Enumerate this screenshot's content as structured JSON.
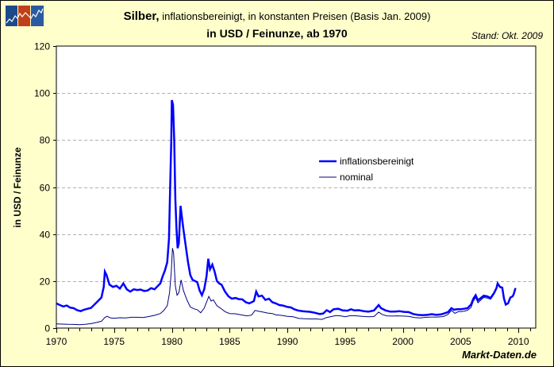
{
  "header": {
    "title_bold": "Silber,",
    "title_rest": " inflationsbereinigt, in konstanten Preisen (Basis Jan. 2009)",
    "subtitle": "in USD / Feinunze, ab 1970",
    "stand": "Stand: Okt. 2009"
  },
  "footer": {
    "credit": "Markt-Daten.de"
  },
  "logo": {
    "icon": "chart-logo-icon",
    "colors": [
      "#1a4a8a",
      "#c0401a",
      "#2a5aa0"
    ]
  },
  "colors": {
    "background": "#ffffcc",
    "plot_background": "#ffffff",
    "inflationsbereinigt": "#0000ff",
    "nominal": "#000080",
    "grid": "#b0b0b0"
  },
  "chart_data": {
    "type": "line",
    "title": "Silber, inflationsbereinigt, in konstanten Preisen (Basis Jan. 2009) – in USD / Feinunze, ab 1970",
    "xlabel": "",
    "ylabel": "in USD / Feinunze",
    "xlim": [
      1970,
      2011.5
    ],
    "ylim": [
      0,
      120
    ],
    "xticks": [
      1970,
      1975,
      1980,
      1985,
      1990,
      1995,
      2000,
      2005,
      2010
    ],
    "yticks": [
      0,
      20,
      40,
      60,
      80,
      100,
      120
    ],
    "grid": "horizontal dashed",
    "legend_position": "upper right center",
    "series": [
      {
        "name": "inflationsbereinigt",
        "color": "#0000ff",
        "width": 2.5,
        "points": [
          [
            1970.0,
            10.5
          ],
          [
            1970.3,
            9.8
          ],
          [
            1970.6,
            9.2
          ],
          [
            1970.9,
            9.6
          ],
          [
            1971.2,
            8.7
          ],
          [
            1971.5,
            8.5
          ],
          [
            1971.8,
            7.6
          ],
          [
            1972.1,
            7.2
          ],
          [
            1972.4,
            7.8
          ],
          [
            1972.7,
            8.2
          ],
          [
            1973.0,
            8.6
          ],
          [
            1973.3,
            10.0
          ],
          [
            1973.6,
            11.5
          ],
          [
            1973.9,
            13.0
          ],
          [
            1974.1,
            17.5
          ],
          [
            1974.2,
            24.0
          ],
          [
            1974.35,
            22.5
          ],
          [
            1974.6,
            18.5
          ],
          [
            1974.9,
            17.5
          ],
          [
            1975.2,
            18.0
          ],
          [
            1975.5,
            16.8
          ],
          [
            1975.8,
            19.0
          ],
          [
            1976.1,
            16.5
          ],
          [
            1976.4,
            15.5
          ],
          [
            1976.7,
            16.5
          ],
          [
            1977.0,
            16.2
          ],
          [
            1977.3,
            16.4
          ],
          [
            1977.6,
            15.8
          ],
          [
            1977.9,
            16.0
          ],
          [
            1978.2,
            17.0
          ],
          [
            1978.5,
            16.5
          ],
          [
            1978.8,
            18.0
          ],
          [
            1979.0,
            19.0
          ],
          [
            1979.2,
            22.0
          ],
          [
            1979.4,
            24.5
          ],
          [
            1979.6,
            28.0
          ],
          [
            1979.75,
            38.0
          ],
          [
            1979.85,
            60.0
          ],
          [
            1979.95,
            80.0
          ],
          [
            1980.0,
            97.0
          ],
          [
            1980.1,
            95.0
          ],
          [
            1980.2,
            80.0
          ],
          [
            1980.3,
            55.0
          ],
          [
            1980.4,
            42.0
          ],
          [
            1980.5,
            34.0
          ],
          [
            1980.6,
            36.0
          ],
          [
            1980.75,
            52.0
          ],
          [
            1980.85,
            48.0
          ],
          [
            1981.0,
            42.0
          ],
          [
            1981.2,
            35.0
          ],
          [
            1981.4,
            28.0
          ],
          [
            1981.6,
            22.5
          ],
          [
            1981.8,
            20.5
          ],
          [
            1982.0,
            20.0
          ],
          [
            1982.2,
            19.5
          ],
          [
            1982.4,
            16.0
          ],
          [
            1982.6,
            14.0
          ],
          [
            1982.8,
            16.5
          ],
          [
            1983.0,
            22.0
          ],
          [
            1983.15,
            29.5
          ],
          [
            1983.3,
            25.0
          ],
          [
            1983.5,
            27.0
          ],
          [
            1983.7,
            24.0
          ],
          [
            1983.9,
            20.0
          ],
          [
            1984.1,
            19.0
          ],
          [
            1984.3,
            18.5
          ],
          [
            1984.6,
            15.5
          ],
          [
            1984.9,
            13.5
          ],
          [
            1985.2,
            12.5
          ],
          [
            1985.5,
            12.8
          ],
          [
            1985.8,
            12.3
          ],
          [
            1986.1,
            12.2
          ],
          [
            1986.4,
            11.0
          ],
          [
            1986.7,
            10.5
          ],
          [
            1986.9,
            11.0
          ],
          [
            1987.1,
            11.5
          ],
          [
            1987.3,
            15.5
          ],
          [
            1987.5,
            13.5
          ],
          [
            1987.8,
            13.8
          ],
          [
            1988.1,
            12.0
          ],
          [
            1988.4,
            12.5
          ],
          [
            1988.7,
            11.0
          ],
          [
            1989.0,
            10.5
          ],
          [
            1989.3,
            9.8
          ],
          [
            1989.6,
            9.6
          ],
          [
            1990.0,
            9.0
          ],
          [
            1990.3,
            8.8
          ],
          [
            1990.6,
            8.0
          ],
          [
            1990.9,
            7.5
          ],
          [
            1991.3,
            7.2
          ],
          [
            1991.7,
            7.0
          ],
          [
            1992.0,
            6.9
          ],
          [
            1992.4,
            6.5
          ],
          [
            1992.8,
            6.0
          ],
          [
            1993.1,
            6.2
          ],
          [
            1993.4,
            7.6
          ],
          [
            1993.7,
            6.8
          ],
          [
            1994.0,
            8.0
          ],
          [
            1994.4,
            8.2
          ],
          [
            1994.8,
            7.5
          ],
          [
            1995.2,
            7.4
          ],
          [
            1995.5,
            8.0
          ],
          [
            1995.8,
            7.5
          ],
          [
            1996.2,
            7.6
          ],
          [
            1996.6,
            7.2
          ],
          [
            1997.0,
            7.0
          ],
          [
            1997.5,
            7.5
          ],
          [
            1997.9,
            9.8
          ],
          [
            1998.1,
            8.5
          ],
          [
            1998.5,
            7.5
          ],
          [
            1998.9,
            7.0
          ],
          [
            1999.3,
            7.0
          ],
          [
            1999.7,
            7.2
          ],
          [
            2000.1,
            6.9
          ],
          [
            2000.5,
            6.8
          ],
          [
            2000.9,
            6.0
          ],
          [
            2001.3,
            5.6
          ],
          [
            2001.7,
            5.5
          ],
          [
            2002.1,
            5.6
          ],
          [
            2002.5,
            5.9
          ],
          [
            2002.9,
            5.6
          ],
          [
            2003.3,
            5.8
          ],
          [
            2003.6,
            6.3
          ],
          [
            2003.9,
            6.8
          ],
          [
            2004.2,
            8.5
          ],
          [
            2004.4,
            7.8
          ],
          [
            2004.7,
            8.0
          ],
          [
            2005.0,
            8.0
          ],
          [
            2005.3,
            8.2
          ],
          [
            2005.6,
            8.5
          ],
          [
            2005.9,
            10.0
          ],
          [
            2006.1,
            12.5
          ],
          [
            2006.3,
            14.0
          ],
          [
            2006.5,
            11.8
          ],
          [
            2006.8,
            13.0
          ],
          [
            2007.0,
            13.8
          ],
          [
            2007.3,
            13.5
          ],
          [
            2007.6,
            12.8
          ],
          [
            2007.9,
            15.0
          ],
          [
            2008.1,
            17.0
          ],
          [
            2008.2,
            19.0
          ],
          [
            2008.4,
            17.5
          ],
          [
            2008.6,
            17.2
          ],
          [
            2008.75,
            12.5
          ],
          [
            2008.9,
            10.0
          ],
          [
            2009.1,
            10.5
          ],
          [
            2009.3,
            13.0
          ],
          [
            2009.5,
            13.5
          ],
          [
            2009.6,
            14.5
          ],
          [
            2009.75,
            17.0
          ]
        ]
      },
      {
        "name": "nominal",
        "color": "#000080",
        "width": 1,
        "points": [
          [
            1970.0,
            1.8
          ],
          [
            1970.5,
            1.7
          ],
          [
            1971.0,
            1.6
          ],
          [
            1971.5,
            1.55
          ],
          [
            1972.0,
            1.45
          ],
          [
            1972.5,
            1.6
          ],
          [
            1973.0,
            1.9
          ],
          [
            1973.5,
            2.4
          ],
          [
            1973.9,
            2.9
          ],
          [
            1974.2,
            4.5
          ],
          [
            1974.4,
            5.0
          ],
          [
            1974.7,
            4.3
          ],
          [
            1975.0,
            4.2
          ],
          [
            1975.5,
            4.4
          ],
          [
            1976.0,
            4.3
          ],
          [
            1976.5,
            4.6
          ],
          [
            1977.0,
            4.6
          ],
          [
            1977.5,
            4.5
          ],
          [
            1978.0,
            4.9
          ],
          [
            1978.5,
            5.4
          ],
          [
            1979.0,
            6.2
          ],
          [
            1979.3,
            7.5
          ],
          [
            1979.6,
            9.5
          ],
          [
            1979.8,
            15.0
          ],
          [
            1979.95,
            24.0
          ],
          [
            1980.05,
            34.0
          ],
          [
            1980.15,
            32.0
          ],
          [
            1980.3,
            18.0
          ],
          [
            1980.45,
            14.0
          ],
          [
            1980.6,
            15.0
          ],
          [
            1980.8,
            20.5
          ],
          [
            1981.0,
            16.0
          ],
          [
            1981.3,
            12.0
          ],
          [
            1981.6,
            9.0
          ],
          [
            1981.9,
            8.2
          ],
          [
            1982.2,
            7.8
          ],
          [
            1982.5,
            6.5
          ],
          [
            1982.8,
            8.5
          ],
          [
            1983.0,
            11.0
          ],
          [
            1983.2,
            13.5
          ],
          [
            1983.4,
            11.5
          ],
          [
            1983.6,
            12.0
          ],
          [
            1983.9,
            9.5
          ],
          [
            1984.2,
            8.5
          ],
          [
            1984.6,
            7.0
          ],
          [
            1985.0,
            6.2
          ],
          [
            1985.5,
            6.1
          ],
          [
            1986.0,
            5.6
          ],
          [
            1986.5,
            5.2
          ],
          [
            1986.9,
            5.5
          ],
          [
            1987.2,
            7.5
          ],
          [
            1987.5,
            7.2
          ],
          [
            1987.9,
            6.8
          ],
          [
            1988.3,
            6.4
          ],
          [
            1988.7,
            6.2
          ],
          [
            1989.0,
            5.6
          ],
          [
            1989.5,
            5.4
          ],
          [
            1990.0,
            5.0
          ],
          [
            1990.5,
            4.8
          ],
          [
            1991.0,
            4.1
          ],
          [
            1991.5,
            4.0
          ],
          [
            1992.0,
            3.9
          ],
          [
            1992.5,
            3.9
          ],
          [
            1993.0,
            3.7
          ],
          [
            1993.4,
            4.5
          ],
          [
            1993.8,
            4.9
          ],
          [
            1994.2,
            5.3
          ],
          [
            1994.6,
            5.2
          ],
          [
            1995.0,
            4.8
          ],
          [
            1995.5,
            5.3
          ],
          [
            1996.0,
            5.2
          ],
          [
            1996.5,
            5.0
          ],
          [
            1997.0,
            4.8
          ],
          [
            1997.5,
            4.9
          ],
          [
            1997.9,
            6.8
          ],
          [
            1998.2,
            5.8
          ],
          [
            1998.6,
            5.2
          ],
          [
            1999.0,
            5.1
          ],
          [
            1999.5,
            5.2
          ],
          [
            2000.0,
            5.1
          ],
          [
            2000.5,
            5.0
          ],
          [
            2001.0,
            4.5
          ],
          [
            2001.5,
            4.3
          ],
          [
            2002.0,
            4.6
          ],
          [
            2002.5,
            4.7
          ],
          [
            2003.0,
            4.7
          ],
          [
            2003.5,
            4.9
          ],
          [
            2003.9,
            5.8
          ],
          [
            2004.2,
            7.5
          ],
          [
            2004.5,
            6.3
          ],
          [
            2004.8,
            7.0
          ],
          [
            2005.0,
            7.0
          ],
          [
            2005.3,
            7.2
          ],
          [
            2005.6,
            7.6
          ],
          [
            2005.9,
            8.8
          ],
          [
            2006.1,
            11.5
          ],
          [
            2006.3,
            13.0
          ],
          [
            2006.5,
            10.8
          ],
          [
            2006.8,
            12.2
          ],
          [
            2007.0,
            13.0
          ],
          [
            2007.3,
            12.8
          ],
          [
            2007.6,
            12.3
          ],
          [
            2007.9,
            14.5
          ],
          [
            2008.1,
            16.5
          ],
          [
            2008.2,
            18.8
          ],
          [
            2008.4,
            17.2
          ],
          [
            2008.6,
            17.0
          ],
          [
            2008.75,
            12.0
          ],
          [
            2008.9,
            9.8
          ],
          [
            2009.1,
            10.5
          ],
          [
            2009.3,
            13.0
          ],
          [
            2009.5,
            13.6
          ],
          [
            2009.6,
            14.6
          ],
          [
            2009.75,
            17.0
          ]
        ]
      }
    ]
  },
  "legend": {
    "items": [
      {
        "label": "inflationsbereinigt",
        "color": "#0000ff",
        "width": 2.5
      },
      {
        "label": "nominal",
        "color": "#000080",
        "width": 1
      }
    ]
  },
  "axes": {
    "y_label": "in USD / Feinunze",
    "y_tick_labels": [
      "0",
      "20",
      "40",
      "60",
      "80",
      "100",
      "120"
    ],
    "x_tick_labels": [
      "1970",
      "1975",
      "1980",
      "1985",
      "1990",
      "1995",
      "2000",
      "2005",
      "2010"
    ]
  }
}
